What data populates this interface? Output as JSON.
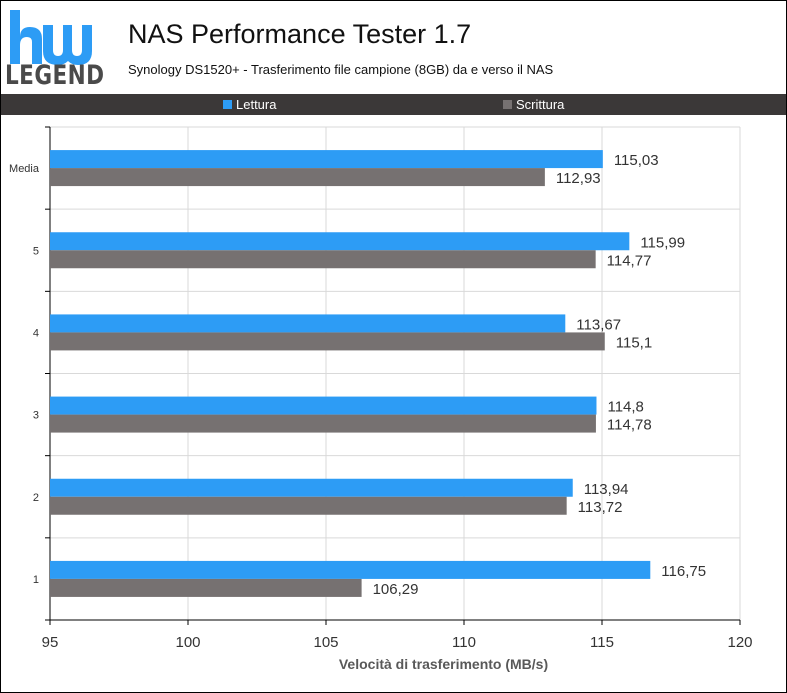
{
  "logo": {
    "word": "LEGEND"
  },
  "header": {
    "title": "NAS Performance Tester 1.7",
    "subtitle": "Synology DS1520+ - Trasferimento file campione (8GB) da e verso il NAS"
  },
  "colors": {
    "lettura": "#2d9cf5",
    "scrittura": "#767171",
    "legend_bg": "#3b3838",
    "grid": "#d9d9d9"
  },
  "chart_data": {
    "type": "bar",
    "orientation": "horizontal",
    "categories": [
      "Media",
      "5",
      "4",
      "3",
      "2",
      "1"
    ],
    "series": [
      {
        "name": "Lettura",
        "values": [
          115.03,
          115.99,
          113.67,
          114.8,
          113.94,
          116.75
        ]
      },
      {
        "name": "Scrittura",
        "values": [
          112.93,
          114.77,
          115.1,
          114.78,
          113.72,
          106.29
        ]
      }
    ],
    "value_labels": {
      "Lettura": [
        "115,03",
        "115,99",
        "113,67",
        "114,8",
        "113,94",
        "116,75"
      ],
      "Scrittura": [
        "112,93",
        "114,77",
        "115,1",
        "114,78",
        "113,72",
        "106,29"
      ]
    },
    "xlim": [
      95,
      120
    ],
    "xticks": [
      95,
      100,
      105,
      110,
      115,
      120
    ],
    "xtick_labels": [
      "95",
      "100",
      "105",
      "110",
      "115",
      "120"
    ],
    "xlabel": "Velocità di trasferimento (MB/s)",
    "legend_position": "top",
    "grid": true
  }
}
